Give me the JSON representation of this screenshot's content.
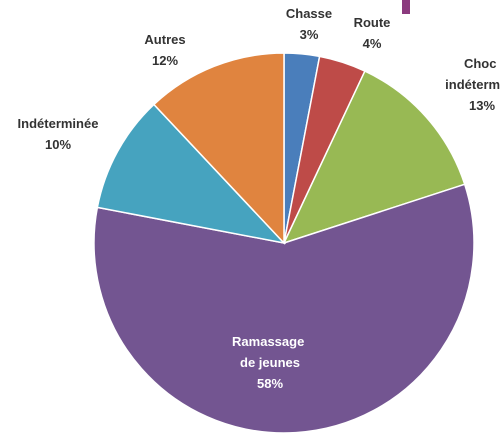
{
  "chart_data": {
    "type": "pie",
    "categories": [
      "Chasse",
      "Route",
      "Choc indéterminé",
      "Ramassage de jeunes",
      "Indéterminée",
      "Autres"
    ],
    "values": [
      3,
      4,
      13,
      58,
      10,
      12
    ],
    "value_labels": [
      "3%",
      "4%",
      "13%",
      "58%",
      "10%",
      "12%"
    ],
    "colors": [
      "#4a7ebb",
      "#be4b48",
      "#98b954",
      "#735591",
      "#46a3bf",
      "#e0843f"
    ]
  }
}
